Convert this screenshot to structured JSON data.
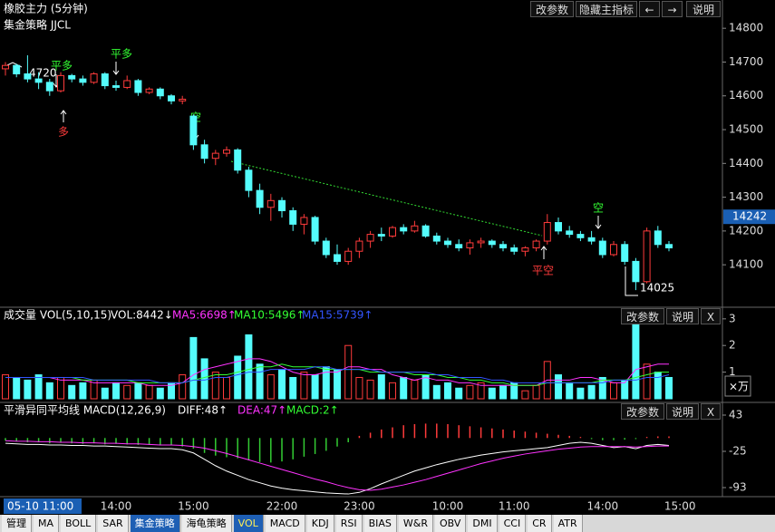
{
  "toolbar": {
    "title": "橡胶主力 (5分钟)",
    "buttons": [
      "改参数",
      "隐藏主指标",
      "←",
      "→",
      "说明"
    ]
  },
  "panel_buttons": [
    "改参数",
    "说明",
    "X"
  ],
  "tabs": [
    "管理",
    "MA",
    "BOLL",
    "SAR",
    "集金策略",
    "海龟策略",
    "VOL",
    "MACD",
    "KDJ",
    "RSI",
    "BIAS",
    "W&R",
    "OBV",
    "DMI",
    "CCI",
    "CR",
    "ATR"
  ],
  "chart_data": {
    "type": "candlestick",
    "indicator": "集金策略 JJCL",
    "up_color": "#ff3b3b",
    "down_color": "#54fcfc",
    "categories": [
      "05-10 11:00",
      null,
      null,
      null,
      null,
      null,
      null,
      null,
      null,
      null,
      "14:00",
      null,
      null,
      null,
      null,
      null,
      null,
      "15:00",
      null,
      null,
      null,
      null,
      null,
      null,
      null,
      "22:00",
      null,
      null,
      null,
      null,
      null,
      null,
      "23:00",
      null,
      null,
      null,
      null,
      null,
      null,
      null,
      "10:00",
      null,
      null,
      null,
      null,
      null,
      "11:00",
      null,
      null,
      null,
      null,
      null,
      null,
      null,
      "14:00",
      null,
      null,
      null,
      null,
      null,
      null,
      "15:00"
    ],
    "ohlc": [
      [
        14680,
        14700,
        14660,
        14690
      ],
      [
        14690,
        14695,
        14655,
        14665
      ],
      [
        14665,
        14720,
        14640,
        14650
      ],
      [
        14650,
        14670,
        14620,
        14640
      ],
      [
        14640,
        14650,
        14600,
        14615
      ],
      [
        14615,
        14670,
        14610,
        14660
      ],
      [
        14660,
        14665,
        14640,
        14650
      ],
      [
        14650,
        14660,
        14630,
        14640
      ],
      [
        14640,
        14670,
        14635,
        14665
      ],
      [
        14665,
        14670,
        14620,
        14630
      ],
      [
        14630,
        14645,
        14615,
        14625
      ],
      [
        14625,
        14660,
        14620,
        14645
      ],
      [
        14645,
        14650,
        14600,
        14610
      ],
      [
        14610,
        14625,
        14605,
        14620
      ],
      [
        14620,
        14625,
        14590,
        14600
      ],
      [
        14600,
        14605,
        14575,
        14585
      ],
      [
        14585,
        14600,
        14575,
        14590
      ],
      [
        14540,
        14545,
        14440,
        14455
      ],
      [
        14455,
        14470,
        14400,
        14415
      ],
      [
        14415,
        14440,
        14395,
        14430
      ],
      [
        14430,
        14450,
        14420,
        14440
      ],
      [
        14440,
        14445,
        14370,
        14380
      ],
      [
        14380,
        14390,
        14300,
        14320
      ],
      [
        14320,
        14340,
        14250,
        14270
      ],
      [
        14270,
        14310,
        14230,
        14290
      ],
      [
        14290,
        14300,
        14240,
        14260
      ],
      [
        14260,
        14270,
        14200,
        14220
      ],
      [
        14220,
        14250,
        14190,
        14240
      ],
      [
        14240,
        14245,
        14160,
        14170
      ],
      [
        14170,
        14180,
        14120,
        14130
      ],
      [
        14130,
        14160,
        14100,
        14110
      ],
      [
        14110,
        14150,
        14100,
        14140
      ],
      [
        14140,
        14180,
        14120,
        14170
      ],
      [
        14170,
        14200,
        14150,
        14190
      ],
      [
        14190,
        14210,
        14170,
        14185
      ],
      [
        14185,
        14215,
        14180,
        14210
      ],
      [
        14210,
        14220,
        14190,
        14200
      ],
      [
        14200,
        14230,
        14195,
        14215
      ],
      [
        14215,
        14220,
        14180,
        14185
      ],
      [
        14185,
        14195,
        14160,
        14170
      ],
      [
        14170,
        14180,
        14150,
        14160
      ],
      [
        14160,
        14175,
        14140,
        14150
      ],
      [
        14150,
        14175,
        14130,
        14165
      ],
      [
        14165,
        14180,
        14150,
        14170
      ],
      [
        14170,
        14175,
        14150,
        14160
      ],
      [
        14160,
        14170,
        14140,
        14150
      ],
      [
        14150,
        14160,
        14130,
        14140
      ],
      [
        14140,
        14155,
        14125,
        14150
      ],
      [
        14150,
        14175,
        14140,
        14170
      ],
      [
        14170,
        14250,
        14160,
        14225
      ],
      [
        14225,
        14240,
        14190,
        14200
      ],
      [
        14200,
        14215,
        14180,
        14190
      ],
      [
        14190,
        14200,
        14170,
        14180
      ],
      [
        14180,
        14200,
        14160,
        14170
      ],
      [
        14170,
        14180,
        14120,
        14130
      ],
      [
        14130,
        14170,
        14125,
        14160
      ],
      [
        14160,
        14170,
        14100,
        14110
      ],
      [
        14110,
        14120,
        14025,
        14050
      ],
      [
        14050,
        14210,
        14045,
        14200
      ],
      [
        14200,
        14215,
        14150,
        14160
      ],
      [
        14160,
        14170,
        14140,
        14150
      ],
      null
    ],
    "ylim": [
      13977,
      14830
    ],
    "yticks": [
      14100,
      14200,
      14300,
      14400,
      14500,
      14600,
      14700,
      14800
    ],
    "last_price": 14242,
    "last_price_color": "#1a5fb4",
    "annotations": [
      "4720",
      "平多",
      "多",
      "平多",
      "空",
      "平空",
      "空",
      "14025"
    ],
    "volume": {
      "title": "成交量 VOL(5,10,15)",
      "value_text": "VOL:8442↓",
      "unit": "×万",
      "ylim": [
        0,
        3.3
      ],
      "yticks": [
        1,
        2,
        3
      ],
      "values": [
        0.9,
        0.8,
        0.7,
        0.9,
        0.6,
        0.8,
        0.5,
        0.6,
        0.7,
        0.4,
        0.6,
        0.5,
        0.6,
        0.5,
        0.4,
        0.6,
        0.9,
        2.3,
        1.5,
        1.0,
        0.8,
        1.6,
        2.4,
        1.3,
        0.9,
        1.1,
        0.8,
        1.0,
        0.9,
        1.2,
        1.1,
        2.0,
        0.8,
        0.7,
        0.9,
        0.6,
        0.8,
        0.7,
        0.9,
        0.5,
        0.6,
        0.4,
        0.5,
        0.6,
        0.4,
        0.5,
        0.6,
        0.3,
        0.5,
        1.4,
        0.9,
        0.6,
        0.4,
        0.5,
        0.8,
        0.6,
        0.7,
        2.8,
        1.3,
        1.0,
        0.8,
        null
      ],
      "series": [
        {
          "name": "MA5:6698↑",
          "color": "#ff33ff",
          "values": [
            0.8,
            0.8,
            0.8,
            0.8,
            0.8,
            0.7,
            0.7,
            0.7,
            0.6,
            0.6,
            0.6,
            0.6,
            0.6,
            0.5,
            0.5,
            0.5,
            0.6,
            0.9,
            1.1,
            1.2,
            1.3,
            1.4,
            1.5,
            1.5,
            1.4,
            1.2,
            1.0,
            0.9,
            0.9,
            1.0,
            1.0,
            1.2,
            1.2,
            1.1,
            1.1,
            0.9,
            0.8,
            0.7,
            0.8,
            0.7,
            0.7,
            0.6,
            0.6,
            0.5,
            0.5,
            0.5,
            0.5,
            0.5,
            0.5,
            0.7,
            0.7,
            0.7,
            0.8,
            0.8,
            0.7,
            0.6,
            0.6,
            1.1,
            1.2,
            1.3,
            1.3,
            null
          ]
        },
        {
          "name": "MA10:5496↑",
          "color": "#33ff33",
          "values": [
            0.8,
            0.8,
            0.8,
            0.8,
            0.8,
            0.8,
            0.8,
            0.7,
            0.7,
            0.7,
            0.7,
            0.7,
            0.6,
            0.6,
            0.6,
            0.6,
            0.6,
            0.7,
            0.8,
            0.9,
            0.9,
            1.0,
            1.1,
            1.2,
            1.2,
            1.3,
            1.2,
            1.2,
            1.2,
            1.1,
            1.1,
            1.1,
            1.1,
            1.0,
            1.0,
            1.0,
            1.0,
            0.9,
            0.9,
            0.9,
            0.8,
            0.8,
            0.7,
            0.7,
            0.6,
            0.6,
            0.5,
            0.5,
            0.5,
            0.6,
            0.6,
            0.6,
            0.6,
            0.6,
            0.7,
            0.7,
            0.7,
            0.8,
            0.9,
            1.0,
            1.0,
            null
          ]
        },
        {
          "name": "MA15:5739↑",
          "color": "#3355ff",
          "values": [
            0.8,
            0.8,
            0.8,
            0.8,
            0.8,
            0.8,
            0.8,
            0.8,
            0.7,
            0.7,
            0.7,
            0.7,
            0.7,
            0.7,
            0.6,
            0.6,
            0.6,
            0.7,
            0.7,
            0.8,
            0.8,
            0.9,
            1.0,
            1.0,
            1.1,
            1.1,
            1.1,
            1.1,
            1.2,
            1.2,
            1.1,
            1.1,
            1.1,
            1.1,
            1.0,
            1.0,
            1.0,
            1.0,
            1.0,
            0.9,
            0.9,
            0.8,
            0.8,
            0.8,
            0.7,
            0.7,
            0.6,
            0.6,
            0.6,
            0.6,
            0.6,
            0.6,
            0.6,
            0.6,
            0.6,
            0.7,
            0.7,
            0.7,
            0.8,
            0.8,
            0.9,
            null
          ]
        }
      ]
    },
    "macd": {
      "title": "平滑异同平均线 MACD(12,26,9)",
      "ylim": [
        -110,
        60
      ],
      "yticks": [
        -93,
        -25,
        43
      ],
      "hist_name": "MACD:2↑",
      "hist_color": "#33ff33",
      "hist_up_color": "#ff3b3b",
      "hist_down_color": "#33cc33",
      "hist": [
        -5,
        -6,
        -8,
        -8,
        -10,
        -9,
        -10,
        -11,
        -10,
        -12,
        -11,
        -12,
        -13,
        -13,
        -14,
        -14,
        -16,
        -20,
        -28,
        -33,
        -36,
        -38,
        -42,
        -45,
        -46,
        -44,
        -40,
        -35,
        -30,
        -24,
        -16,
        -8,
        4,
        10,
        16,
        20,
        24,
        26,
        27,
        27,
        26,
        24,
        22,
        20,
        18,
        16,
        14,
        12,
        10,
        8,
        6,
        4,
        2,
        -2,
        -4,
        -4,
        -3,
        -2,
        2,
        3,
        3,
        null
      ],
      "series": [
        {
          "name": "DIFF:48↑",
          "color": "#ffffff",
          "values": [
            -10,
            -11,
            -12,
            -12,
            -13,
            -13,
            -14,
            -14,
            -15,
            -15,
            -16,
            -17,
            -18,
            -19,
            -20,
            -20,
            -22,
            -28,
            -40,
            -52,
            -62,
            -70,
            -78,
            -84,
            -90,
            -94,
            -97,
            -99,
            -101,
            -103,
            -104,
            -105,
            -102,
            -95,
            -86,
            -78,
            -70,
            -62,
            -56,
            -50,
            -45,
            -40,
            -36,
            -32,
            -29,
            -26,
            -24,
            -22,
            -20,
            -18,
            -14,
            -10,
            -8,
            -10,
            -14,
            -18,
            -16,
            -20,
            -14,
            -12,
            -14,
            null
          ]
        },
        {
          "name": "DEA:47↑",
          "color": "#ff33ff",
          "values": [
            -5,
            -6,
            -6,
            -7,
            -7,
            -8,
            -8,
            -9,
            -9,
            -10,
            -10,
            -11,
            -11,
            -12,
            -13,
            -13,
            -14,
            -16,
            -19,
            -24,
            -29,
            -35,
            -41,
            -47,
            -53,
            -59,
            -65,
            -71,
            -77,
            -82,
            -88,
            -93,
            -97,
            -98,
            -96,
            -92,
            -88,
            -83,
            -78,
            -72,
            -66,
            -60,
            -54,
            -48,
            -43,
            -38,
            -34,
            -30,
            -27,
            -24,
            -21,
            -19,
            -17,
            -16,
            -16,
            -16,
            -16,
            -17,
            -16,
            -15,
            -15,
            null
          ]
        }
      ]
    }
  }
}
